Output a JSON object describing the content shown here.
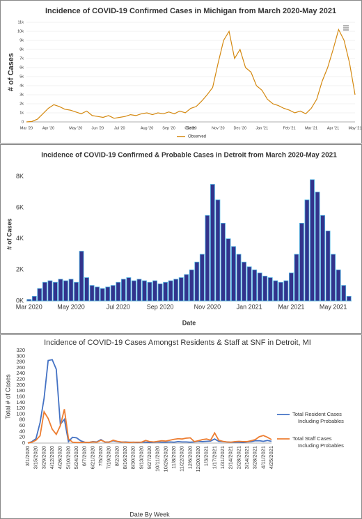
{
  "chart_data": [
    {
      "type": "line",
      "title": "Incidence of COVID-19 Confirmed Cases in Michigan from March 2020-May 2021",
      "x_label": "Date",
      "y_label": "# of Cases",
      "grid": true,
      "legend": "bottom",
      "categories": [
        "Mar '20",
        null,
        null,
        null,
        "Apr '20",
        null,
        null,
        null,
        null,
        "May '20",
        null,
        null,
        null,
        "Jun '20",
        null,
        null,
        null,
        "Jul '20",
        null,
        null,
        null,
        null,
        "Aug '20",
        null,
        null,
        null,
        "Sep '20",
        null,
        null,
        null,
        "Oct '20",
        null,
        null,
        null,
        null,
        "Nov '20",
        null,
        null,
        null,
        "Dec '20",
        null,
        null,
        null,
        "Jan '21",
        null,
        null,
        null,
        null,
        "Feb '21",
        null,
        null,
        null,
        "Mar '21",
        null,
        null,
        null,
        "Apr '21",
        null,
        null,
        null,
        "May '21"
      ],
      "series": [
        {
          "name": "Observed",
          "color": "#d4880f",
          "values": [
            0,
            50,
            300,
            900,
            1500,
            1900,
            1700,
            1400,
            1300,
            1100,
            900,
            1200,
            700,
            600,
            500,
            700,
            400,
            500,
            600,
            800,
            700,
            900,
            1000,
            800,
            1000,
            900,
            1100,
            900,
            1200,
            1000,
            1500,
            1700,
            2300,
            3000,
            3800,
            6500,
            9000,
            10000,
            7000,
            8000,
            6000,
            5500,
            4000,
            3500,
            2500,
            2000,
            1800,
            1500,
            1300,
            1000,
            1200,
            900,
            1500,
            2500,
            4500,
            6000,
            8000,
            10200,
            9000,
            6500,
            3000
          ]
        }
      ],
      "ylim": [
        0,
        11000
      ],
      "yticks": [
        {
          "value": 0,
          "label": "0"
        },
        {
          "value": 1000,
          "label": "1k"
        },
        {
          "value": 2000,
          "label": "2k"
        },
        {
          "value": 3000,
          "label": "3k"
        },
        {
          "value": 4000,
          "label": "4k"
        },
        {
          "value": 5000,
          "label": "5k"
        },
        {
          "value": 6000,
          "label": "6k"
        },
        {
          "value": 7000,
          "label": "7k"
        },
        {
          "value": 8000,
          "label": "8k"
        },
        {
          "value": 9000,
          "label": "9k"
        },
        {
          "value": 10000,
          "label": "10k"
        },
        {
          "value": 11000,
          "label": "11k"
        }
      ]
    },
    {
      "type": "bar",
      "title": "Incidence of COVID-19 Confirmed & Probable Cases in Detroit from March 2020-May 2021",
      "x_label": "Date",
      "y_label": "# of Cases",
      "grid": false,
      "color": "#33338c",
      "categories": [
        "Mar 2020",
        null,
        null,
        null,
        null,
        null,
        null,
        null,
        "May 2020",
        null,
        null,
        null,
        null,
        null,
        null,
        null,
        null,
        "Jul 2020",
        null,
        null,
        null,
        null,
        null,
        null,
        null,
        "Sep 2020",
        null,
        null,
        null,
        null,
        null,
        null,
        null,
        null,
        "Nov 2020",
        null,
        null,
        null,
        null,
        null,
        null,
        null,
        "Jan 2021",
        null,
        null,
        null,
        null,
        null,
        null,
        null,
        "Mar 2021",
        null,
        null,
        null,
        null,
        null,
        null,
        null,
        "May 2021",
        null,
        null,
        null
      ],
      "values": [
        100,
        300,
        800,
        1200,
        1300,
        1200,
        1400,
        1300,
        1400,
        1200,
        3200,
        1500,
        1000,
        900,
        800,
        900,
        1000,
        1200,
        1400,
        1500,
        1300,
        1400,
        1300,
        1200,
        1300,
        1100,
        1200,
        1300,
        1400,
        1500,
        1700,
        2000,
        2500,
        3000,
        5500,
        7500,
        6500,
        5000,
        4000,
        3500,
        3000,
        2500,
        2200,
        2000,
        1800,
        1600,
        1500,
        1300,
        1200,
        1300,
        1800,
        3000,
        5000,
        6500,
        7800,
        7000,
        5500,
        4500,
        3000,
        2000,
        1000,
        300
      ],
      "ylim": [
        0,
        8600
      ],
      "yticks": [
        {
          "value": 0,
          "label": "0K"
        },
        {
          "value": 2000,
          "label": "2K"
        },
        {
          "value": 4000,
          "label": "4K"
        },
        {
          "value": 6000,
          "label": "6K"
        },
        {
          "value": 8000,
          "label": "8K"
        }
      ]
    },
    {
      "type": "line",
      "title": "Incidence of COVID-19 Cases Amongst Residents & Staff at SNF in Detroit, MI",
      "x_label": "Date By Week",
      "y_label": "Total # of Cases",
      "grid": false,
      "legend": "right",
      "categories": [
        "3/1/2020",
        null,
        "3/15/2020",
        null,
        "3/29/2020",
        null,
        "4/12/2020",
        null,
        "4/26/2020",
        null,
        "5/10/2020",
        null,
        "5/24/2020",
        null,
        "6/7/2020",
        null,
        "6/21/2020",
        null,
        "7/5/2020",
        null,
        "7/19/2020",
        null,
        "8/2/2020",
        null,
        "8/16/2020",
        null,
        "8/30/2020",
        null,
        "9/13/2020",
        null,
        "9/27/2020",
        null,
        "10/11/2020",
        null,
        "10/25/2020",
        null,
        "11/8/2020",
        null,
        "11/22/2020",
        null,
        "12/6/2020",
        null,
        "12/20/2020",
        null,
        "1/3/2021",
        null,
        "1/17/2021",
        null,
        "1/31/2021",
        null,
        "2/14/2021",
        null,
        "2/28/2021",
        null,
        "3/14/2021",
        null,
        "3/28/2021",
        null,
        "4/11/2021",
        null,
        "4/25/2021"
      ],
      "series": [
        {
          "name": "Total Resident Cases Including Probables",
          "color": "#4472c4",
          "values": [
            0,
            5,
            15,
            70,
            155,
            285,
            288,
            255,
            65,
            82,
            5,
            20,
            18,
            8,
            3,
            2,
            5,
            4,
            12,
            3,
            4,
            8,
            5,
            3,
            4,
            3,
            3,
            2,
            3,
            3,
            2,
            3,
            4,
            3,
            3,
            4,
            3,
            5,
            4,
            4,
            3,
            4,
            6,
            5,
            6,
            7,
            14,
            6,
            5,
            4,
            3,
            3,
            3,
            2,
            4,
            5,
            8,
            8,
            6,
            9,
            6
          ]
        },
        {
          "name": "Total Staff Cases Including Probables",
          "color": "#ed7d31",
          "values": [
            0,
            3,
            10,
            25,
            108,
            85,
            48,
            30,
            60,
            117,
            15,
            3,
            2,
            2,
            3,
            2,
            4,
            3,
            10,
            4,
            3,
            10,
            6,
            4,
            3,
            2,
            3,
            3,
            3,
            9,
            5,
            4,
            6,
            8,
            7,
            10,
            13,
            15,
            14,
            17,
            18,
            5,
            8,
            12,
            14,
            10,
            35,
            10,
            6,
            4,
            3,
            5,
            6,
            5,
            5,
            8,
            12,
            22,
            26,
            20,
            12
          ]
        }
      ],
      "ylim": [
        0,
        320
      ],
      "yticks": [
        0,
        20,
        40,
        60,
        80,
        100,
        120,
        140,
        160,
        180,
        200,
        220,
        240,
        260,
        280,
        300,
        320
      ]
    }
  ]
}
